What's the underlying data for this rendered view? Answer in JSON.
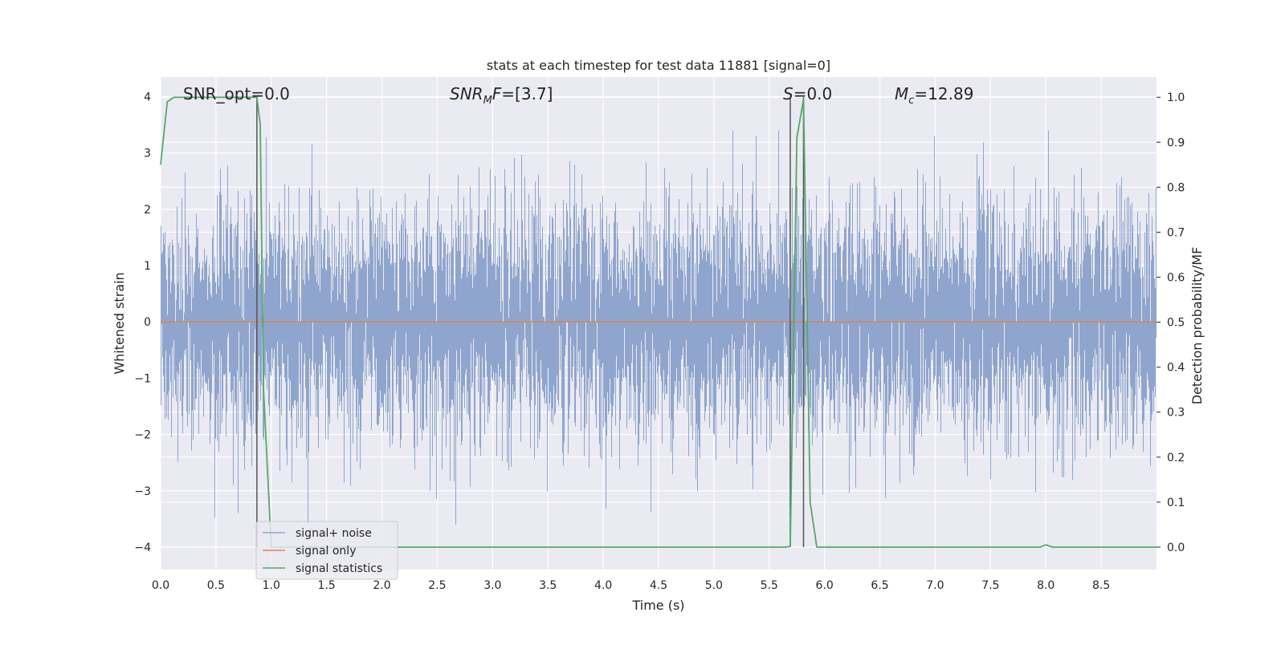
{
  "chart_data": {
    "type": "line",
    "title": "stats at each timestep for test data 11881 [signal=0]",
    "xlabel": "Time (s)",
    "ylabel_left": "Whitened strain",
    "ylabel_right": "Detection probability/MF",
    "xlim": [
      0.0,
      9.0
    ],
    "ylim_left": [
      -4.4,
      4.35
    ],
    "ylim_right": [
      -0.05,
      1.045
    ],
    "x_ticks": [
      "0.0",
      "0.5",
      "1.0",
      "1.5",
      "2.0",
      "2.5",
      "3.0",
      "3.5",
      "4.0",
      "4.5",
      "5.0",
      "5.5",
      "6.0",
      "6.5",
      "7.0",
      "7.5",
      "8.0",
      "8.5"
    ],
    "y_ticks_left": [
      "4",
      "3",
      "2",
      "1",
      "0",
      "−1",
      "−2",
      "−3",
      "−4"
    ],
    "y_ticks_right": [
      "1.0",
      "0.9",
      "0.8",
      "0.7",
      "0.6",
      "0.5",
      "0.4",
      "0.3",
      "0.2",
      "0.1",
      "0.0"
    ],
    "grid": true,
    "legend_position": "lower-left",
    "annotations": {
      "snr_opt": "SNR_opt=0.0",
      "snr_mf_name": "SNR",
      "snr_mf_sub": "M",
      "snr_mf_tail": "F",
      "snr_mf_value": "=[3.7]",
      "s_name": "S",
      "s_value": "=0.0",
      "mc_name": "M",
      "mc_sub": "c",
      "mc_value": "=12.89"
    },
    "series": [
      {
        "name": "signal+ noise",
        "axis": "left",
        "color": "#8fa5cd",
        "noise_sigma": 1.0,
        "peak_range": [
          -3.6,
          3.4
        ]
      },
      {
        "name": "signal only",
        "axis": "left",
        "color": "#dd8452",
        "x": [
          0.0,
          9.0
        ],
        "y": [
          0.0,
          0.0
        ]
      },
      {
        "name": "signal statistics",
        "axis": "right",
        "color": "#55a868",
        "x": [
          0.0,
          0.06,
          0.12,
          0.5,
          0.87,
          0.9,
          0.93,
          0.96,
          1.0,
          5.65,
          5.69,
          5.75,
          5.81,
          5.87,
          5.93,
          6.5,
          7.5,
          7.95,
          8.0,
          8.06,
          8.2,
          8.5,
          9.0
        ],
        "y": [
          0.85,
          0.99,
          1.0,
          1.0,
          1.0,
          0.94,
          0.35,
          0.2,
          0.0,
          0.0,
          0.002,
          0.91,
          0.995,
          0.1,
          0.0,
          0.0,
          0.0,
          0.0,
          0.005,
          0.0,
          0.0,
          0.0,
          0.0
        ]
      }
    ],
    "vertical_lines_x": [
      0.87,
      5.69,
      5.81
    ]
  }
}
